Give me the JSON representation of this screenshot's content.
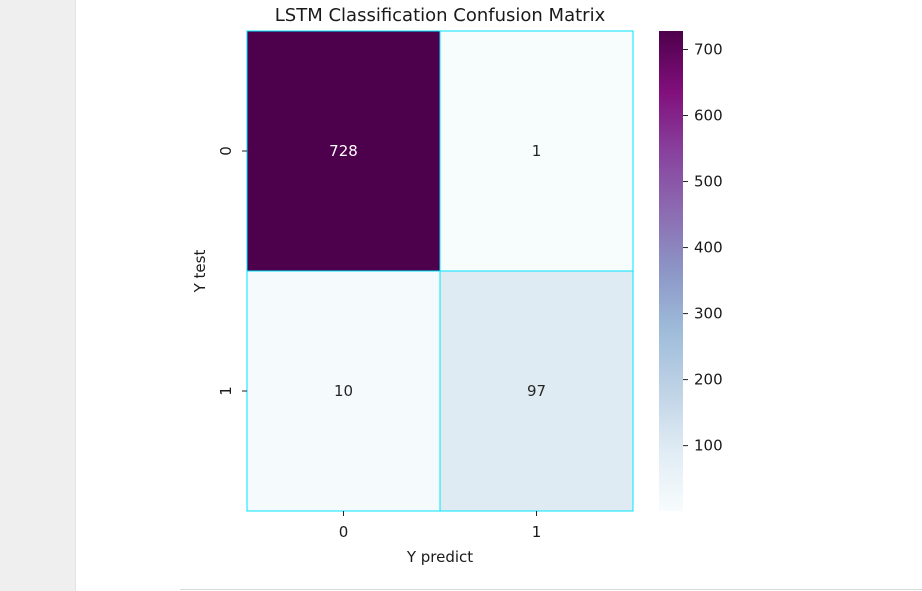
{
  "chart_data": {
    "type": "heatmap",
    "title": "LSTM Classification Confusion Matrix",
    "xlabel": "Y predict",
    "ylabel": "Y test",
    "x_categories": [
      "0",
      "1"
    ],
    "y_categories": [
      "0",
      "1"
    ],
    "matrix": [
      [
        728,
        1
      ],
      [
        10,
        97
      ]
    ],
    "colormap": "BuPu",
    "cell_border_color": "#00e5ff",
    "colorbar": {
      "ticks": [
        100,
        200,
        300,
        400,
        500,
        600,
        700
      ],
      "labels": [
        "100",
        "200",
        "300",
        "400",
        "500",
        "600",
        "700"
      ],
      "range": [
        1,
        728
      ]
    }
  }
}
